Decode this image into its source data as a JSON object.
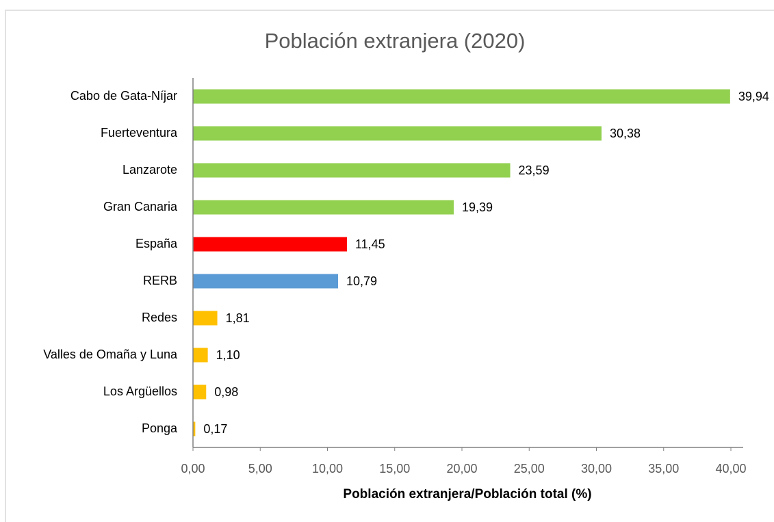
{
  "chart_data": {
    "type": "barh",
    "title": "Población extranjera (2020)",
    "xlabel": "Población extranjera/Población total (%)",
    "categories": [
      "Cabo de Gata-Níjar",
      "Fuerteventura",
      "Lanzarote",
      "Gran Canaria",
      "España",
      "RERB",
      "Redes",
      "Valles de Omaña y Luna",
      "Los Argüellos",
      "Ponga"
    ],
    "values": [
      39.94,
      30.38,
      23.59,
      19.39,
      11.45,
      10.79,
      1.81,
      1.1,
      0.98,
      0.17
    ],
    "value_labels": [
      "39,94",
      "30,38",
      "23,59",
      "19,39",
      "11,45",
      "10,79",
      "1,81",
      "1,10",
      "0,98",
      "0,17"
    ],
    "colors": [
      "#92d050",
      "#92d050",
      "#92d050",
      "#92d050",
      "#ff0000",
      "#5b9bd5",
      "#ffc000",
      "#ffc000",
      "#ffc000",
      "#ffc000"
    ],
    "xlim": [
      0,
      40
    ],
    "xticks": [
      {
        "value": 0,
        "label": "0,00"
      },
      {
        "value": 5,
        "label": "5,00"
      },
      {
        "value": 10,
        "label": "10,00"
      },
      {
        "value": 15,
        "label": "15,00"
      },
      {
        "value": 20,
        "label": "20,00"
      },
      {
        "value": 25,
        "label": "25,00"
      },
      {
        "value": 30,
        "label": "30,00"
      },
      {
        "value": 35,
        "label": "35,00"
      },
      {
        "value": 40,
        "label": "40,00"
      }
    ],
    "grid": false
  }
}
